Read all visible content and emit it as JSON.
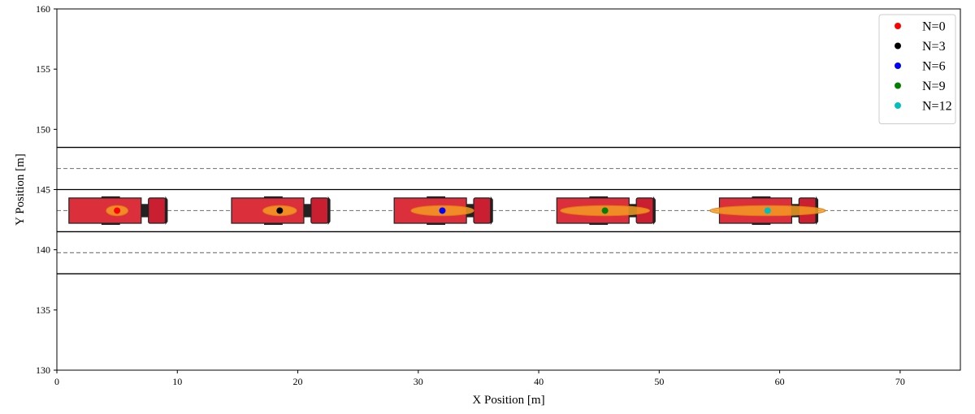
{
  "chart_data": {
    "type": "scatter",
    "title": "",
    "xlabel": "X Position [m]",
    "ylabel": "Y Position [m]",
    "xlim": [
      0,
      75
    ],
    "ylim": [
      130,
      160
    ],
    "xticks": [
      0,
      10,
      20,
      30,
      40,
      50,
      60,
      70
    ],
    "yticks": [
      130,
      135,
      140,
      145,
      150,
      155,
      160
    ],
    "legend_position": "top-right",
    "grid": false,
    "lane_boundaries_y": [
      148.5,
      145.0,
      141.5,
      138.0
    ],
    "lane_centerlines_y": [
      146.75,
      143.25,
      139.75
    ],
    "lane_line_color": "#000000",
    "centerline_color": "#808080",
    "truck_color": "#dc2f3c",
    "truck_outline_color": "#222222",
    "uncertainty_color": "#f5a020",
    "series": [
      {
        "name": "N=0",
        "color": "#ff0000",
        "x": 5.0,
        "y": 143.25,
        "trailer_x": [
          1.0,
          7.0
        ],
        "cab_x": [
          7.6,
          9.0
        ],
        "ellipse_half_width_m": 0.9
      },
      {
        "name": "N=3",
        "color": "#000000",
        "x": 18.5,
        "y": 143.25,
        "trailer_x": [
          14.5,
          20.5
        ],
        "cab_x": [
          21.1,
          22.5
        ],
        "ellipse_half_width_m": 1.4
      },
      {
        "name": "N=6",
        "color": "#0000ff",
        "x": 32.0,
        "y": 143.25,
        "trailer_x": [
          28.0,
          34.0
        ],
        "cab_x": [
          34.6,
          36.0
        ],
        "ellipse_half_width_m": 2.6
      },
      {
        "name": "N=9",
        "color": "#008000",
        "x": 45.5,
        "y": 143.25,
        "trailer_x": [
          41.5,
          47.5
        ],
        "cab_x": [
          48.1,
          49.5
        ],
        "ellipse_half_width_m": 3.7
      },
      {
        "name": "N=12",
        "color": "#00bfbf",
        "x": 59.0,
        "y": 143.25,
        "trailer_x": [
          55.0,
          61.0
        ],
        "cab_x": [
          61.6,
          63.0
        ],
        "ellipse_half_width_m": 4.8
      }
    ]
  }
}
